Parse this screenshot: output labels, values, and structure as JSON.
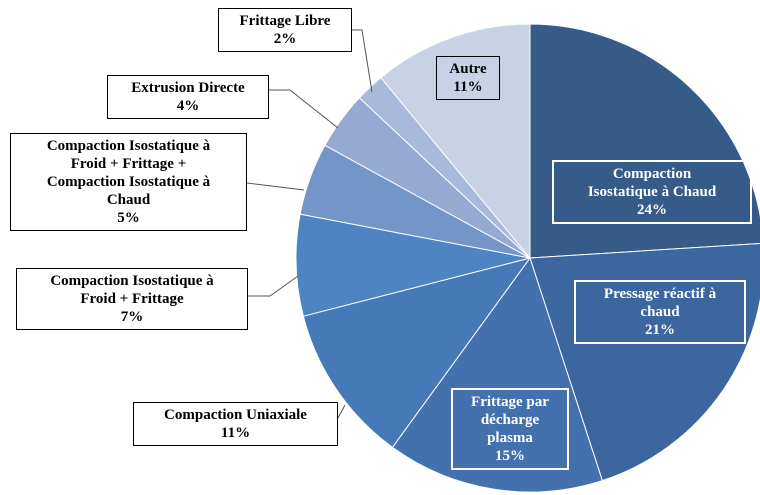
{
  "chart_data": {
    "type": "pie",
    "categories": [
      "Compaction\nIsostatique à Chaud",
      "Pressage réactif à\nchaud",
      "Frittage par\ndécharge\nplasma",
      "Compaction Uniaxiale",
      "Compaction Isostatique à\nFroid + Frittage",
      "Compaction Isostatique à\nFroid + Frittage +\nCompaction Isostatique à\nChaud",
      "Extrusion Directe",
      "Frittage Libre",
      "Autre"
    ],
    "values": [
      24,
      21,
      15,
      11,
      7,
      5,
      4,
      2,
      11
    ],
    "value_labels": [
      "24%",
      "21%",
      "15%",
      "11%",
      "7%",
      "5%",
      "4%",
      "2%",
      "11%"
    ],
    "colors": [
      "#365b89",
      "#3b669e",
      "#4271ad",
      "#4679b8",
      "#4e84c4",
      "#7395c8",
      "#94aad3",
      "#a8badc",
      "#c7d2e6"
    ]
  }
}
